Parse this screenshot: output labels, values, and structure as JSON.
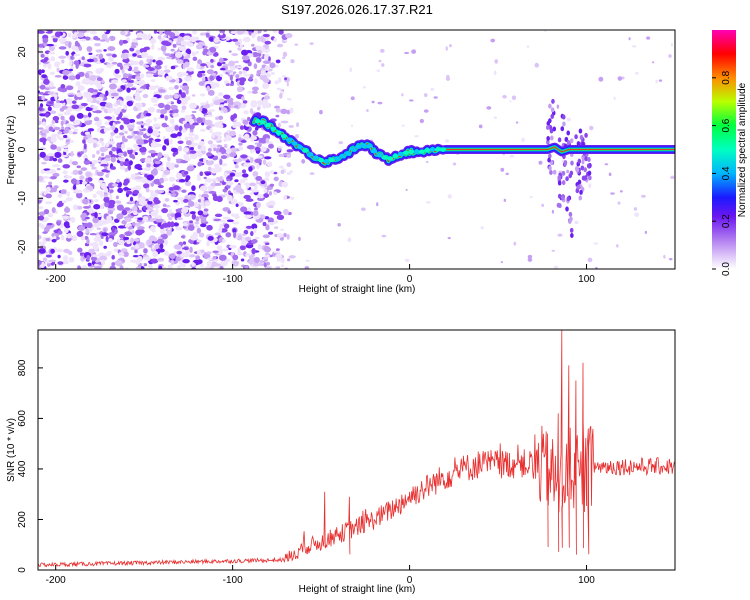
{
  "title": "S197.2026.026.17.37.R21",
  "chart_data": [
    {
      "type": "heatmap",
      "name": "spectrogram",
      "xlabel": "Height of straight line (km)",
      "ylabel": "Frequency (Hz)",
      "xlim": [
        -210,
        150
      ],
      "ylim": [
        -24.5,
        24.5
      ],
      "xticks": [
        -200,
        -100,
        0,
        100
      ],
      "yticks": [
        -20,
        -10,
        0,
        10,
        20
      ],
      "noise_region": [
        -210,
        -80
      ],
      "trace": {
        "x": [
          -88,
          -82,
          -78,
          -72,
          -66,
          -60,
          -54,
          -48,
          -42,
          -36,
          -30,
          -24,
          -18,
          -12,
          -6,
          0,
          6,
          12,
          18,
          24,
          40,
          60,
          70,
          78,
          82,
          86,
          90,
          94,
          100,
          110,
          120,
          130,
          140,
          150
        ],
        "y": [
          6,
          5.5,
          4.5,
          3,
          1.5,
          0,
          -1.5,
          -2.5,
          -2,
          -1,
          0.5,
          1,
          -1,
          -2,
          -1,
          -0.5,
          -0.5,
          0,
          0,
          0,
          0,
          0,
          0,
          0,
          0.5,
          -0.5,
          0,
          0,
          0,
          0,
          0,
          0,
          0,
          0
        ]
      },
      "colorbar": {
        "label": "Normalized spectral amplitude",
        "ticks": [
          0.0,
          0.2,
          0.4,
          0.6,
          0.8
        ],
        "range": [
          0,
          1
        ],
        "colors": [
          "#ffffff",
          "#c9a8ef",
          "#8a3df0",
          "#1a1aff",
          "#00c8ff",
          "#00ff60",
          "#b6ff00",
          "#ff7a00",
          "#ff0000",
          "#ff00a0"
        ]
      }
    },
    {
      "type": "line",
      "name": "snr",
      "xlabel": "Height of straight line (km)",
      "ylabel": "SNR (10 * v/v)",
      "xlim": [
        -210,
        150
      ],
      "ylim": [
        0,
        950
      ],
      "xticks": [
        -200,
        -100,
        0,
        100
      ],
      "yticks": [
        0,
        200,
        400,
        600,
        800
      ],
      "color": "#e83030",
      "baseline": {
        "x": [
          -210,
          -70,
          -60,
          -50,
          -40,
          -30,
          -20,
          -10,
          0,
          10,
          20,
          30,
          40,
          50,
          60,
          70,
          75,
          80,
          85,
          88,
          90,
          92,
          95,
          98,
          100,
          103,
          110,
          120,
          130,
          140,
          150
        ],
        "y": [
          20,
          40,
          90,
          110,
          140,
          170,
          200,
          240,
          290,
          330,
          370,
          400,
          420,
          420,
          420,
          420,
          410,
          380,
          320,
          380,
          350,
          400,
          330,
          350,
          400,
          410,
          410,
          410,
          410,
          410,
          410
        ]
      },
      "spikes": [
        {
          "x": 78,
          "y": 540
        },
        {
          "x": 84,
          "y": 620
        },
        {
          "x": 86,
          "y": 950
        },
        {
          "x": 90,
          "y": 810
        },
        {
          "x": 94,
          "y": 750
        },
        {
          "x": 98,
          "y": 820
        },
        {
          "x": 101,
          "y": 560
        },
        {
          "x": -48,
          "y": 310
        },
        {
          "x": -34,
          "y": 290
        }
      ]
    }
  ]
}
